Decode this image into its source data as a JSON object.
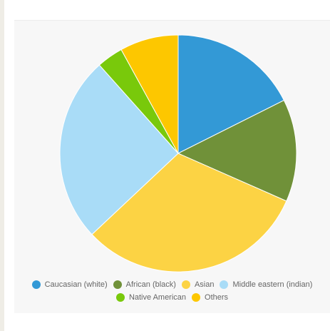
{
  "chart_data": {
    "type": "pie",
    "title": "",
    "legend_position": "bottom",
    "slices": [
      {
        "label": "Caucasian (white)",
        "value": 17.6,
        "color": "#3399d6"
      },
      {
        "label": "African (black)",
        "value": 14.0,
        "color": "#709139"
      },
      {
        "label": "Asian",
        "value": 31.4,
        "color": "#fcd344"
      },
      {
        "label": "Middle eastern (indian)",
        "value": 25.4,
        "color": "#a9dcf7"
      },
      {
        "label": "Native American",
        "value": 3.6,
        "color": "#79c90b"
      },
      {
        "label": "Others",
        "value": 8.0,
        "color": "#fdc700"
      }
    ]
  }
}
